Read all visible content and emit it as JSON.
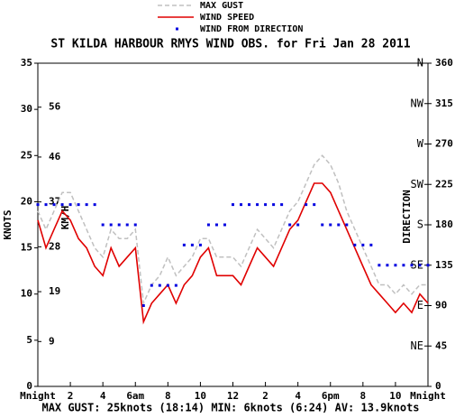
{
  "chart_data": {
    "type": "line",
    "title": "ST KILDA HARBOUR RMYS WIND OBS. for Fri Jan 28 2011",
    "footer": "MAX GUST: 25knots (18:14) MIN: 6knots (6:24) AV: 13.9knots",
    "ylabel": "KNOTS",
    "ylabel_kmh": "KM/H",
    "y2label": "DIRECTION",
    "x": [
      0,
      0.5,
      1,
      1.5,
      2,
      2.5,
      3,
      3.5,
      4,
      4.5,
      5,
      5.5,
      6,
      6.5,
      7,
      7.5,
      8,
      8.5,
      9,
      9.5,
      10,
      10.5,
      11,
      11.5,
      12,
      12.5,
      13,
      13.5,
      14,
      14.5,
      15,
      15.5,
      16,
      16.5,
      17,
      17.5,
      18,
      18.5,
      19,
      19.5,
      20,
      20.5,
      21,
      21.5,
      22,
      22.5,
      23,
      23.5,
      24
    ],
    "series": [
      {
        "name": "MAX GUST",
        "color": "#c0c0c0",
        "dashed": true,
        "values": [
          19,
          17,
          19,
          21,
          21,
          19,
          17,
          15,
          14,
          17,
          16,
          16,
          17,
          9,
          11,
          12,
          14,
          12,
          13,
          14,
          16,
          16,
          14,
          14,
          14,
          13,
          15,
          17,
          16,
          15,
          17,
          19,
          20,
          22,
          24,
          25,
          24,
          22,
          19,
          17,
          15,
          13,
          11,
          11,
          10,
          11,
          10,
          11,
          11
        ]
      },
      {
        "name": "WIND SPEED",
        "color": "#e00000",
        "values": [
          18,
          15,
          17,
          19,
          18,
          16,
          15,
          13,
          12,
          15,
          13,
          14,
          15,
          7,
          9,
          10,
          11,
          9,
          11,
          12,
          14,
          15,
          12,
          12,
          12,
          11,
          13,
          15,
          14,
          13,
          15,
          17,
          18,
          20,
          22,
          22,
          21,
          19,
          17,
          15,
          13,
          11,
          10,
          9,
          8,
          9,
          8,
          10,
          9
        ]
      },
      {
        "name": "WIND FROM DIRECTION",
        "color": "#0000e0",
        "axis": "y2",
        "marker": "dot",
        "values": [
          202.5,
          202.5,
          202.5,
          202.5,
          202.5,
          202.5,
          202.5,
          202.5,
          180,
          180,
          180,
          180,
          180,
          90,
          112.5,
          112.5,
          112.5,
          112.5,
          157.5,
          157.5,
          157.5,
          180,
          180,
          180,
          202.5,
          202.5,
          202.5,
          202.5,
          202.5,
          202.5,
          202.5,
          180,
          180,
          202.5,
          202.5,
          180,
          180,
          180,
          180,
          157.5,
          157.5,
          157.5,
          135,
          135,
          135,
          135,
          135,
          135,
          135
        ]
      }
    ],
    "xlim": [
      0,
      24
    ],
    "xticks": [
      {
        "value": 0,
        "label": "Mnight"
      },
      2,
      4,
      {
        "value": 6,
        "label": "6am"
      },
      8,
      10,
      12,
      {
        "value": 14,
        "label": "2"
      },
      {
        "value": 16,
        "label": "4"
      },
      {
        "value": 18,
        "label": "6pm"
      },
      {
        "value": 20,
        "label": "8"
      },
      {
        "value": 22,
        "label": "10"
      },
      {
        "value": 24,
        "label": "Mnight"
      }
    ],
    "ylim": [
      0,
      35
    ],
    "yticks": [
      0,
      5,
      10,
      15,
      20,
      25,
      30,
      35
    ],
    "kmh_lim": [
      0,
      64.82
    ],
    "kmh_ticks": [
      9,
      19,
      28,
      37,
      46,
      56
    ],
    "y2lim": [
      0,
      360
    ],
    "y2ticks": [
      0,
      45,
      90,
      135,
      180,
      225,
      270,
      315,
      360
    ],
    "compass_ticks": [
      {
        "value": 45,
        "label": "NE"
      },
      {
        "value": 90,
        "label": "E"
      },
      {
        "value": 135,
        "label": "SE"
      },
      {
        "value": 180,
        "label": "S"
      },
      {
        "value": 225,
        "label": "SW"
      },
      {
        "value": 270,
        "label": "W"
      },
      {
        "value": 315,
        "label": "NW"
      },
      {
        "value": 360,
        "label": "N"
      }
    ]
  }
}
